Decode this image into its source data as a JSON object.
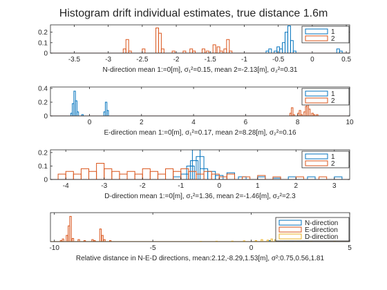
{
  "figure": {
    "title": "Histogram drift individual estimates, true distance 1.6m"
  },
  "chart_data": [
    {
      "type": "histogram",
      "xlabel": "N-direction mean 1:=0[m], σ₁²=0.15, mean 2=-2.13[m], σ₂²=0.31",
      "xlim": [
        -3.85,
        0.55
      ],
      "ylim": [
        0,
        0.27
      ],
      "xticks": [
        "-3.5",
        "-3",
        "-2.5",
        "-2",
        "-1.5",
        "-1",
        "-0.5",
        "0",
        "0.5"
      ],
      "xtick_values": [
        -3.5,
        -3,
        -2.5,
        -2,
        -1.5,
        -1,
        -0.5,
        0,
        0.5
      ],
      "yticks": [
        "0",
        "0.1",
        "0.2"
      ],
      "ytick_values": [
        0,
        0.1,
        0.2
      ],
      "legend": [
        "1",
        "2"
      ],
      "legend_position": "top-right",
      "bin_width": 0.04,
      "series": [
        {
          "name": "1",
          "color": "#0072BD",
          "bins": [
            [
              -0.68,
              0.02
            ],
            [
              -0.64,
              0.04
            ],
            [
              -0.56,
              0.02
            ],
            [
              -0.52,
              0.06
            ],
            [
              -0.48,
              0.04
            ],
            [
              -0.44,
              0.1
            ],
            [
              -0.4,
              0.2
            ],
            [
              -0.36,
              0.26
            ],
            [
              -0.32,
              0.12
            ],
            [
              -0.28,
              0.02
            ],
            [
              0.36,
              0.04
            ],
            [
              0.4,
              0.02
            ]
          ]
        },
        {
          "name": "2",
          "color": "#D95319",
          "bins": [
            [
              -2.78,
              0.04
            ],
            [
              -2.74,
              0.13
            ],
            [
              -2.7,
              0.02
            ],
            [
              -2.5,
              0.04
            ],
            [
              -2.3,
              0.24
            ],
            [
              -2.26,
              0.19
            ],
            [
              -2.22,
              0.04
            ],
            [
              -2.06,
              0.02
            ],
            [
              -1.9,
              0.02
            ],
            [
              -1.8,
              0.04
            ],
            [
              -1.76,
              0.02
            ],
            [
              -1.62,
              0.04
            ],
            [
              -1.56,
              0.02
            ],
            [
              -1.46,
              0.08
            ],
            [
              -1.4,
              0.06
            ],
            [
              -1.36,
              0.02
            ],
            [
              -1.3,
              0.04
            ],
            [
              -1.26,
              0.13
            ],
            [
              -1.22,
              0.02
            ]
          ]
        }
      ]
    },
    {
      "type": "histogram",
      "xlabel": "E-direction mean 1:=0[m], σ₁²=0.17, mean 2=8.28[m], σ₂²=0.16",
      "xlim": [
        -1.5,
        10
      ],
      "ylim": [
        0,
        0.42
      ],
      "xticks": [
        "0",
        "2",
        "4",
        "6",
        "8",
        "10"
      ],
      "xtick_values": [
        0,
        2,
        4,
        6,
        8,
        10
      ],
      "yticks": [
        "0",
        "0.2",
        "0.4"
      ],
      "ytick_values": [
        0,
        0.2,
        0.4
      ],
      "legend": [
        "1",
        "2"
      ],
      "legend_position": "top-right",
      "bin_width": 0.06,
      "series": [
        {
          "name": "1",
          "color": "#0072BD",
          "bins": [
            [
              -0.72,
              0.04
            ],
            [
              -0.66,
              0.18
            ],
            [
              -0.6,
              0.36
            ],
            [
              -0.54,
              0.22
            ],
            [
              -0.48,
              0.06
            ],
            [
              -0.3,
              0.02
            ],
            [
              0.55,
              0.06
            ],
            [
              0.61,
              0.2
            ],
            [
              0.67,
              0.08
            ]
          ]
        },
        {
          "name": "2",
          "color": "#D95319",
          "bins": [
            [
              7.7,
              0.04
            ],
            [
              7.76,
              0.12
            ],
            [
              7.82,
              0.02
            ],
            [
              8.0,
              0.04
            ],
            [
              8.06,
              0.08
            ],
            [
              8.12,
              0.02
            ],
            [
              8.24,
              0.06
            ],
            [
              8.3,
              0.14
            ],
            [
              8.36,
              0.22
            ],
            [
              8.42,
              0.1
            ],
            [
              8.54,
              0.04
            ],
            [
              8.6,
              0.02
            ],
            [
              8.72,
              0.02
            ]
          ]
        }
      ]
    },
    {
      "type": "histogram",
      "xlabel": "D-direction mean 1:=0[m], σ₁²=1.36, mean 2=-1.46[m], σ₂²=2.3",
      "xlim": [
        -4.4,
        3.4
      ],
      "ylim": [
        0,
        0.22
      ],
      "xticks": [
        "-4",
        "-3",
        "-2",
        "-1",
        "0",
        "1",
        "2",
        "3"
      ],
      "xtick_values": [
        -4,
        -3,
        -2,
        -1,
        0,
        1,
        2,
        3
      ],
      "yticks": [
        "0",
        "0.1",
        "0.2"
      ],
      "ytick_values": [
        0,
        0.1,
        0.2
      ],
      "legend": [
        "1",
        "2"
      ],
      "legend_position": "top-right",
      "bin_width": 0.2,
      "series": [
        {
          "name": "1",
          "color": "#0072BD",
          "bins": [
            [
              -1.2,
              0.02
            ],
            [
              -1.0,
              0.04
            ],
            [
              -0.85,
              0.1
            ],
            [
              -0.75,
              0.14
            ],
            [
              -0.7,
              0.22
            ],
            [
              -0.6,
              0.17
            ],
            [
              -0.5,
              0.08
            ],
            [
              -0.3,
              0.06
            ],
            [
              -0.1,
              0.03
            ],
            [
              0.2,
              0.05
            ],
            [
              0.5,
              0.02
            ],
            [
              1.0,
              0.02
            ],
            [
              1.4,
              0.01
            ],
            [
              1.8,
              0.02
            ],
            [
              2.3,
              0.02
            ],
            [
              3.0,
              0.02
            ]
          ]
        },
        {
          "name": "2",
          "color": "#D95319",
          "bins": [
            [
              -4.2,
              0.04
            ],
            [
              -4.0,
              0.06
            ],
            [
              -3.8,
              0.04
            ],
            [
              -3.6,
              0.08
            ],
            [
              -3.4,
              0.06
            ],
            [
              -3.2,
              0.12
            ],
            [
              -3.0,
              0.08
            ],
            [
              -2.8,
              0.06
            ],
            [
              -2.6,
              0.04
            ],
            [
              -2.4,
              0.06
            ],
            [
              -2.2,
              0.04
            ],
            [
              -2.0,
              0.08
            ],
            [
              -1.8,
              0.06
            ],
            [
              -1.6,
              0.04
            ],
            [
              -1.4,
              0.08
            ],
            [
              -1.2,
              0.06
            ],
            [
              -1.0,
              0.08
            ],
            [
              -0.8,
              0.06
            ],
            [
              -0.6,
              0.04
            ],
            [
              -0.4,
              0.06
            ],
            [
              -0.2,
              0.04
            ],
            [
              0.0,
              0.02
            ],
            [
              0.2,
              0.04
            ],
            [
              0.6,
              0.02
            ],
            [
              1.0,
              0.03
            ],
            [
              1.4,
              0.02
            ],
            [
              2.0,
              0.02
            ],
            [
              2.6,
              0.02
            ]
          ]
        }
      ]
    },
    {
      "type": "histogram",
      "xlabel": "Relative distance in N-E-D directions, mean:2.12,-8.29,1.53[m], σ²:0.75,0.56,1.81",
      "xlim": [
        -10.2,
        5
      ],
      "ylim": [
        0,
        0.55
      ],
      "xticks": [
        "-10",
        "-5",
        "0",
        "5"
      ],
      "xtick_values": [
        -10,
        -5,
        0,
        5
      ],
      "yticks": [],
      "ytick_values": [],
      "legend": [
        "N-direction",
        "E-direction",
        "D-direction"
      ],
      "legend_position": "bottom-right",
      "bin_width": 0.08,
      "series": [
        {
          "name": "N-direction",
          "color": "#0072BD",
          "bins": [
            [
              0.9,
              0.02
            ],
            [
              1.2,
              0.04
            ],
            [
              1.5,
              0.06
            ],
            [
              1.7,
              0.1
            ],
            [
              1.85,
              0.16
            ],
            [
              2.0,
              0.22
            ],
            [
              2.15,
              0.3
            ],
            [
              2.3,
              0.2
            ],
            [
              2.45,
              0.12
            ],
            [
              2.6,
              0.06
            ],
            [
              2.8,
              0.03
            ]
          ]
        },
        {
          "name": "E-direction",
          "color": "#D95319",
          "bins": [
            [
              -9.7,
              0.02
            ],
            [
              -9.6,
              0.05
            ],
            [
              -9.4,
              0.12
            ],
            [
              -9.3,
              0.3
            ],
            [
              -9.22,
              0.48
            ],
            [
              -9.1,
              0.06
            ],
            [
              -8.8,
              0.04
            ],
            [
              -8.5,
              0.02
            ],
            [
              -8.1,
              0.04
            ],
            [
              -8.0,
              0.02
            ],
            [
              -7.7,
              0.24
            ],
            [
              -7.6,
              0.12
            ],
            [
              -7.5,
              0.04
            ],
            [
              -7.2,
              0.02
            ]
          ]
        },
        {
          "name": "D-direction",
          "color": "#EDB120",
          "bins": [
            [
              -2.6,
              0.005
            ],
            [
              -1.8,
              0.008
            ],
            [
              -1.0,
              0.01
            ],
            [
              -0.4,
              0.015
            ],
            [
              0.2,
              0.02
            ],
            [
              0.5,
              0.04
            ],
            [
              0.8,
              0.03
            ],
            [
              1.0,
              0.05
            ],
            [
              1.2,
              0.04
            ],
            [
              1.5,
              0.03
            ],
            [
              1.8,
              0.02
            ],
            [
              2.2,
              0.01
            ],
            [
              3.0,
              0.01
            ],
            [
              4.2,
              0.008
            ]
          ]
        }
      ]
    }
  ]
}
